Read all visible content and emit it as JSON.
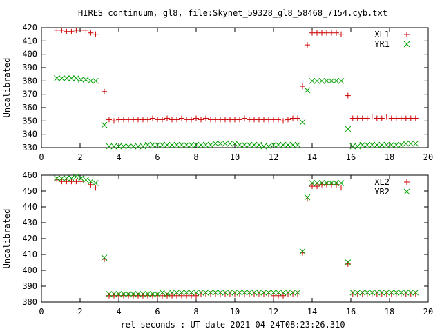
{
  "title": "HIRES continuum, gl8, file:Skynet_59328_gl8_58468_7154.cyb.txt",
  "xlabel": "rel seconds : UT date 2021-04-24T08:23:26.310",
  "colors": {
    "series_a": "#cc0000",
    "series_b": "#00a000"
  },
  "chart_data": [
    {
      "type": "scatter",
      "ylabel": "Uncalibrated",
      "xlim": [
        0,
        20
      ],
      "ylim": [
        330,
        420
      ],
      "xticks": [
        0,
        2,
        4,
        6,
        8,
        10,
        12,
        14,
        16,
        18,
        20
      ],
      "yticks": [
        330,
        340,
        350,
        360,
        370,
        380,
        390,
        400,
        410,
        420
      ],
      "grid": false,
      "legend": "top-right",
      "x": [
        0.8,
        1.05,
        1.3,
        1.55,
        1.8,
        2.05,
        2.3,
        2.55,
        2.8,
        3.25,
        3.5,
        3.75,
        4.0,
        4.25,
        4.5,
        4.75,
        5.0,
        5.25,
        5.5,
        5.75,
        6.0,
        6.25,
        6.5,
        6.75,
        7.0,
        7.25,
        7.5,
        7.75,
        8.0,
        8.25,
        8.5,
        8.75,
        9.0,
        9.25,
        9.5,
        9.75,
        10.0,
        10.25,
        10.5,
        10.75,
        11.0,
        11.25,
        11.5,
        11.75,
        12.0,
        12.25,
        12.5,
        12.75,
        13.0,
        13.25,
        13.5,
        13.75,
        14.0,
        14.25,
        14.5,
        14.75,
        15.0,
        15.25,
        15.5,
        15.85,
        16.1,
        16.35,
        16.6,
        16.85,
        17.1,
        17.35,
        17.6,
        17.85,
        18.1,
        18.35,
        18.6,
        18.85,
        19.1,
        19.35
      ],
      "series": [
        {
          "name": "XL1",
          "marker": "plus",
          "values": [
            418,
            418,
            417,
            417,
            418,
            418,
            418,
            416,
            415,
            372,
            351,
            350,
            351,
            351,
            351,
            351,
            351,
            351,
            351,
            352,
            351,
            351,
            352,
            351,
            351,
            352,
            351,
            351,
            352,
            351,
            352,
            351,
            351,
            351,
            351,
            351,
            351,
            351,
            352,
            351,
            351,
            351,
            351,
            351,
            351,
            351,
            350,
            351,
            352,
            352,
            376,
            407,
            416,
            416,
            416,
            416,
            416,
            416,
            415,
            369,
            352,
            352,
            352,
            352,
            353,
            352,
            352,
            353,
            352,
            352,
            352,
            352,
            352,
            352
          ]
        },
        {
          "name": "YR1",
          "marker": "cross",
          "values": [
            382,
            382,
            382,
            382,
            382,
            381,
            381,
            380,
            380,
            347,
            331,
            331,
            331,
            331,
            331,
            331,
            331,
            331,
            332,
            332,
            332,
            332,
            332,
            332,
            332,
            332,
            332,
            332,
            332,
            332,
            332,
            332,
            333,
            333,
            333,
            333,
            333,
            332,
            332,
            332,
            332,
            332,
            331,
            331,
            332,
            332,
            332,
            332,
            332,
            332,
            349,
            373,
            380,
            380,
            380,
            380,
            380,
            380,
            380,
            344,
            331,
            331,
            332,
            332,
            332,
            332,
            332,
            332,
            332,
            332,
            332,
            333,
            333,
            333
          ]
        }
      ]
    },
    {
      "type": "scatter",
      "ylabel": "Uncalibrated",
      "xlim": [
        0,
        20
      ],
      "ylim": [
        380,
        460
      ],
      "xticks": [
        0,
        2,
        4,
        6,
        8,
        10,
        12,
        14,
        16,
        18,
        20
      ],
      "yticks": [
        380,
        390,
        400,
        410,
        420,
        430,
        440,
        450,
        460
      ],
      "grid": false,
      "legend": "top-right",
      "x": [
        0.8,
        1.05,
        1.3,
        1.55,
        1.8,
        2.05,
        2.3,
        2.55,
        2.8,
        3.25,
        3.5,
        3.75,
        4.0,
        4.25,
        4.5,
        4.75,
        5.0,
        5.25,
        5.5,
        5.75,
        6.0,
        6.25,
        6.5,
        6.75,
        7.0,
        7.25,
        7.5,
        7.75,
        8.0,
        8.25,
        8.5,
        8.75,
        9.0,
        9.25,
        9.5,
        9.75,
        10.0,
        10.25,
        10.5,
        10.75,
        11.0,
        11.25,
        11.5,
        11.75,
        12.0,
        12.25,
        12.5,
        12.75,
        13.0,
        13.25,
        13.5,
        13.75,
        14.0,
        14.25,
        14.5,
        14.75,
        15.0,
        15.25,
        15.5,
        15.85,
        16.1,
        16.35,
        16.6,
        16.85,
        17.1,
        17.35,
        17.6,
        17.85,
        18.1,
        18.35,
        18.6,
        18.85,
        19.1,
        19.35
      ],
      "series": [
        {
          "name": "XL2",
          "marker": "plus",
          "values": [
            457,
            456,
            456,
            456,
            456,
            456,
            455,
            454,
            452,
            407,
            384,
            384,
            384,
            384,
            384,
            384,
            384,
            384,
            384,
            384,
            384,
            384,
            384,
            384,
            384,
            384,
            384,
            384,
            384,
            385,
            385,
            385,
            385,
            385,
            385,
            385,
            385,
            385,
            385,
            385,
            385,
            385,
            385,
            385,
            384,
            384,
            384,
            385,
            385,
            385,
            411,
            445,
            453,
            453,
            454,
            454,
            454,
            454,
            452,
            404,
            385,
            385,
            385,
            385,
            385,
            385,
            385,
            385,
            385,
            385,
            385,
            385,
            385,
            385
          ]
        },
        {
          "name": "YR2",
          "marker": "cross",
          "values": [
            458,
            458,
            458,
            458,
            459,
            458,
            457,
            456,
            455,
            408,
            385,
            385,
            385,
            385,
            385,
            385,
            385,
            385,
            385,
            385,
            385,
            386,
            385,
            386,
            386,
            386,
            386,
            386,
            386,
            386,
            386,
            386,
            386,
            386,
            386,
            386,
            386,
            386,
            386,
            386,
            386,
            386,
            386,
            386,
            386,
            386,
            386,
            386,
            386,
            386,
            412,
            446,
            455,
            455,
            455,
            455,
            455,
            455,
            455,
            405,
            386,
            386,
            386,
            386,
            386,
            386,
            386,
            386,
            386,
            386,
            386,
            386,
            386,
            386
          ]
        }
      ]
    }
  ]
}
